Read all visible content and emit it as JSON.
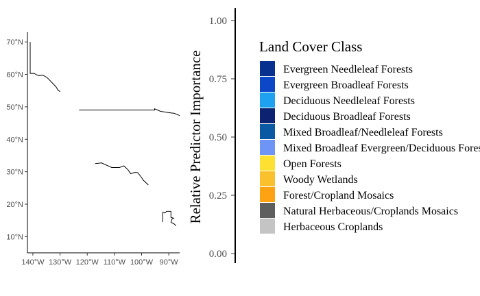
{
  "chart_data": [
    {
      "type": "map",
      "y_ticks": [
        "70°N",
        "60°N",
        "50°N",
        "40°N",
        "30°N",
        "20°N",
        "10°N"
      ],
      "y_tick_values": [
        70,
        60,
        50,
        40,
        30,
        20,
        10
      ],
      "x_ticks": [
        "140°W",
        "130°W",
        "120°W",
        "110°W",
        "100°W",
        "90°W"
      ],
      "x_tick_values": [
        -140,
        -130,
        -120,
        -110,
        -100,
        -90
      ],
      "xlim": [
        -142,
        -86
      ],
      "ylim": [
        5,
        73
      ],
      "lines": [
        {
          "name": "",
          "points": [
            [
              -141,
              70
            ],
            [
              -141,
              60.3
            ],
            [
              -139.5,
              60.3
            ],
            [
              -138.5,
              59.8
            ],
            [
              -137.5,
              59.6
            ],
            [
              -136.5,
              59.8
            ],
            [
              -135.5,
              59.4
            ],
            [
              -134.5,
              58.8
            ],
            [
              -133,
              57.5
            ],
            [
              -131.5,
              56.2
            ],
            [
              -130.8,
              55.2
            ],
            [
              -130,
              54.7
            ]
          ]
        },
        {
          "name": "",
          "points": [
            [
              -123,
              49
            ],
            [
              -110,
              49
            ],
            [
              -97,
              49
            ],
            [
              -95.2,
              49
            ],
            [
              -95.2,
              49.4
            ],
            [
              -93,
              48.6
            ],
            [
              -90,
              48.2
            ],
            [
              -88,
              48
            ],
            [
              -86,
              47.3
            ]
          ]
        },
        {
          "name": "",
          "points": [
            [
              -117.1,
              32.5
            ],
            [
              -114.7,
              32.7
            ],
            [
              -111,
              31.3
            ],
            [
              -108.2,
              31.3
            ],
            [
              -106.5,
              31.8
            ],
            [
              -105,
              30.6
            ],
            [
              -104,
              29.4
            ],
            [
              -102.5,
              29.8
            ],
            [
              -101.4,
              29.7
            ],
            [
              -100,
              28.2
            ],
            [
              -99.5,
              27.5
            ],
            [
              -97.5,
              25.9
            ]
          ]
        },
        {
          "name": "",
          "points": [
            [
              -92.2,
              14.5
            ],
            [
              -92.2,
              17.5
            ],
            [
              -91.4,
              17.3
            ],
            [
              -90.8,
              17.8
            ],
            [
              -89.2,
              17.8
            ],
            [
              -89.2,
              15.9
            ],
            [
              -88.2,
              15.7
            ],
            [
              -88.9,
              15.3
            ],
            [
              -89.2,
              14.4
            ],
            [
              -88,
              13.9
            ],
            [
              -87.3,
              13.3
            ]
          ]
        }
      ]
    },
    {
      "type": "bar",
      "ylabel": "Relative Predictor Importance",
      "ylim": [
        0,
        1
      ],
      "y_ticks": [
        "0.00",
        "0.25",
        "0.50",
        "0.75",
        "1.00"
      ],
      "y_tick_values": [
        0,
        0.25,
        0.5,
        0.75,
        1
      ],
      "categories": [],
      "series": [],
      "legend": {
        "title": "Land Cover Class",
        "position": "right",
        "items": [
          {
            "label": "Evergreen Needleleaf Forests",
            "color": "#08308f"
          },
          {
            "label": "Evergreen Broadleaf Forests",
            "color": "#0b47c7"
          },
          {
            "label": "Deciduous Needleleaf Forests",
            "color": "#1ea2f0"
          },
          {
            "label": "Deciduous Broadleaf Forests",
            "color": "#0b2370"
          },
          {
            "label": "Mixed Broadleaf/Needleleaf Forests",
            "color": "#0a5aa3"
          },
          {
            "label": "Mixed Broadleaf Evergreen/Deciduous Forests",
            "color": "#6e94f5"
          },
          {
            "label": "Open Forests",
            "color": "#fce133"
          },
          {
            "label": "Woody Wetlands",
            "color": "#fbc02d"
          },
          {
            "label": "Forest/Cropland Mosaics",
            "color": "#fca213"
          },
          {
            "label": "Natural Herbaceous/Croplands Mosaics",
            "color": "#5e5e5e"
          },
          {
            "label": "Herbaceous Croplands",
            "color": "#c4c4c4"
          }
        ]
      }
    }
  ]
}
